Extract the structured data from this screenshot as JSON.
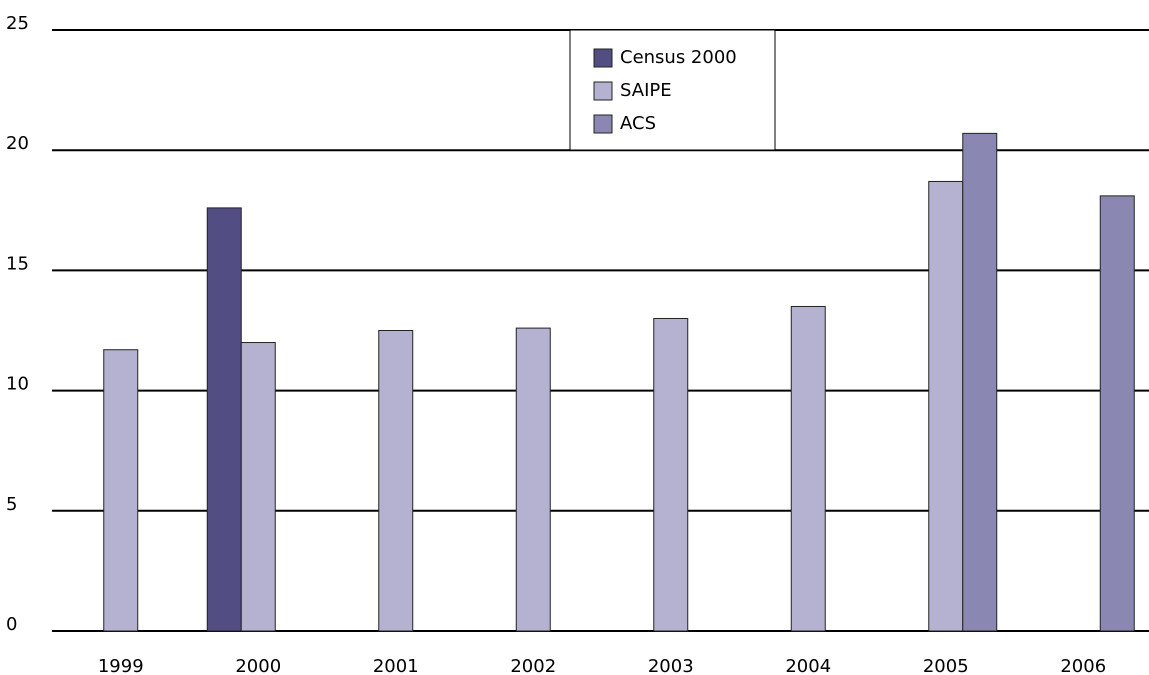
{
  "chart_data": {
    "type": "bar",
    "categories": [
      "1999",
      "2000",
      "2001",
      "2002",
      "2003",
      "2004",
      "2005",
      "2006"
    ],
    "series": [
      {
        "name": "Census 2000",
        "color": "#524e84",
        "values": [
          null,
          17.6,
          null,
          null,
          null,
          null,
          null,
          null
        ]
      },
      {
        "name": "SAIPE",
        "color": "#b4b2d0",
        "values": [
          11.7,
          12.0,
          12.5,
          12.6,
          13.0,
          13.5,
          18.7,
          null
        ]
      },
      {
        "name": "ACS",
        "color": "#8a88b2",
        "values": [
          null,
          null,
          null,
          null,
          null,
          null,
          20.7,
          18.1
        ]
      }
    ],
    "ylim": [
      0,
      25
    ],
    "yticks": [
      0,
      5,
      10,
      15,
      20,
      25
    ],
    "grid": true,
    "legend": "top"
  }
}
